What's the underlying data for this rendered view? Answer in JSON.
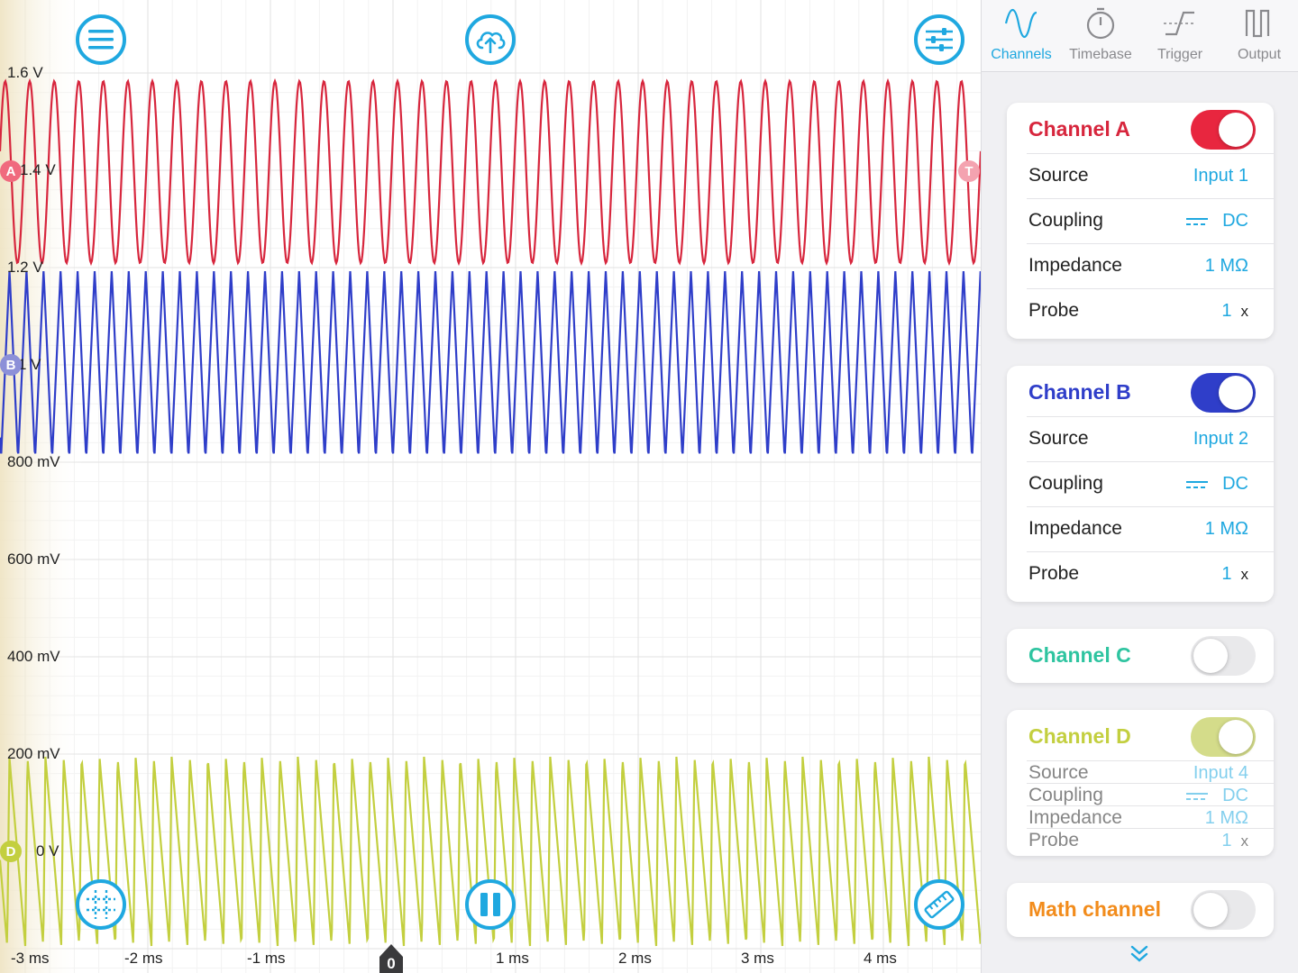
{
  "colors": {
    "accent": "#1fa8e0",
    "channel_a": "#d7263d",
    "channel_b": "#2f3ec9",
    "channel_c": "#2ec4a0",
    "channel_d": "#c3cf3f",
    "math": "#f28c1c",
    "trigger": "#f4a3b0"
  },
  "toolbar": {
    "menu_icon": "hamburger-menu-icon",
    "upload_icon": "cloud-upload-icon",
    "settings_icon": "sliders-icon",
    "grid_icon": "grid-crosshair-icon",
    "pause_icon": "pause-icon",
    "ruler_icon": "ruler-icon"
  },
  "axis": {
    "y_labels": [
      "1.6 V",
      "1.4 V",
      "1.2 V",
      "1 V",
      "800 mV",
      "600 mV",
      "400 mV",
      "200 mV",
      "0 V"
    ],
    "x_labels": [
      "-3 ms",
      "-2 ms",
      "-1 ms",
      "0",
      "1 ms",
      "2 ms",
      "3 ms",
      "4 ms"
    ]
  },
  "markers": {
    "channel_a": "A",
    "channel_b": "B",
    "channel_d": "D",
    "trigger": "T",
    "zero": "0"
  },
  "tabs": [
    {
      "label": "Channels",
      "icon": "sine-wave-icon",
      "active": true
    },
    {
      "label": "Timebase",
      "icon": "stopwatch-icon",
      "active": false
    },
    {
      "label": "Trigger",
      "icon": "trigger-edge-icon",
      "active": false
    },
    {
      "label": "Output",
      "icon": "square-wave-icon",
      "active": false
    }
  ],
  "channels": [
    {
      "title": "Channel A",
      "enabled": true,
      "source_label": "Source",
      "source": "Input 1",
      "coupling_label": "Coupling",
      "coupling": "DC",
      "impedance_label": "Impedance",
      "impedance": "1 MΩ",
      "probe_label": "Probe",
      "probe": "1",
      "probe_unit": "x"
    },
    {
      "title": "Channel B",
      "enabled": true,
      "source_label": "Source",
      "source": "Input 2",
      "coupling_label": "Coupling",
      "coupling": "DC",
      "impedance_label": "Impedance",
      "impedance": "1 MΩ",
      "probe_label": "Probe",
      "probe": "1",
      "probe_unit": "x"
    },
    {
      "title": "Channel C",
      "enabled": false
    },
    {
      "title": "Channel D",
      "enabled": true,
      "source_label": "Source",
      "source": "Input 4",
      "coupling_label": "Coupling",
      "coupling": "DC",
      "impedance_label": "Impedance",
      "impedance": "1 MΩ",
      "probe_label": "Probe",
      "probe": "1",
      "probe_unit": "x"
    },
    {
      "title": "Math channel",
      "enabled": false
    }
  ],
  "scroll_icon": "double-chevron-down-icon"
}
